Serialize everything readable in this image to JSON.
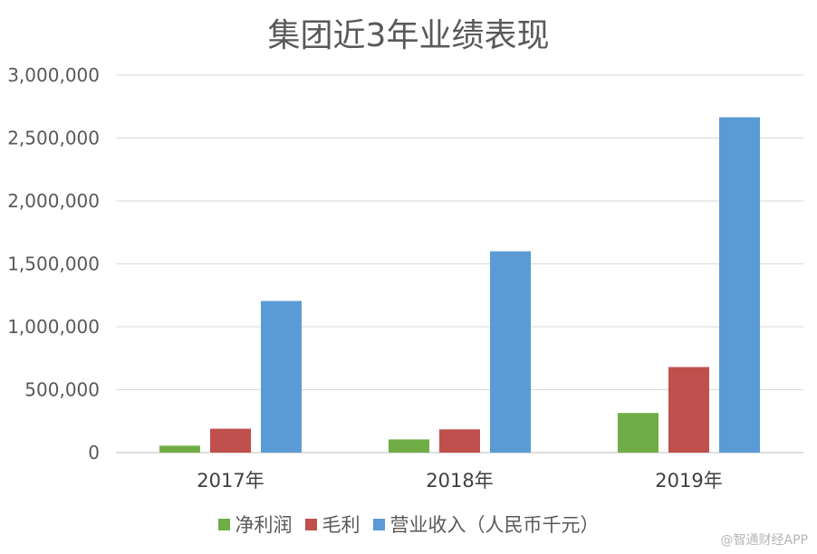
{
  "chart_data": {
    "type": "bar",
    "title": "集团近3年业绩表现",
    "categories": [
      "2017年",
      "2018年",
      "2019年"
    ],
    "series": [
      {
        "name": "净利润",
        "color": "#70ad47",
        "values": [
          55000,
          105000,
          315000
        ]
      },
      {
        "name": "毛利",
        "color": "#c0504d",
        "values": [
          190000,
          185000,
          680000
        ]
      },
      {
        "name": "营业收入（人民币千元）",
        "color": "#5b9bd5",
        "values": [
          1205000,
          1600000,
          2665000
        ]
      }
    ],
    "ylim": [
      0,
      3000000
    ],
    "yticks": [
      "0",
      "500,000",
      "1,000,000",
      "1,500,000",
      "2,000,000",
      "2,500,000",
      "3,000,000"
    ],
    "ytick_values": [
      0,
      500000,
      1000000,
      1500000,
      2000000,
      2500000,
      3000000
    ],
    "xlabel": "",
    "ylabel": "",
    "grid": true,
    "legend_position": "bottom"
  },
  "watermark": "@智通财经APP"
}
